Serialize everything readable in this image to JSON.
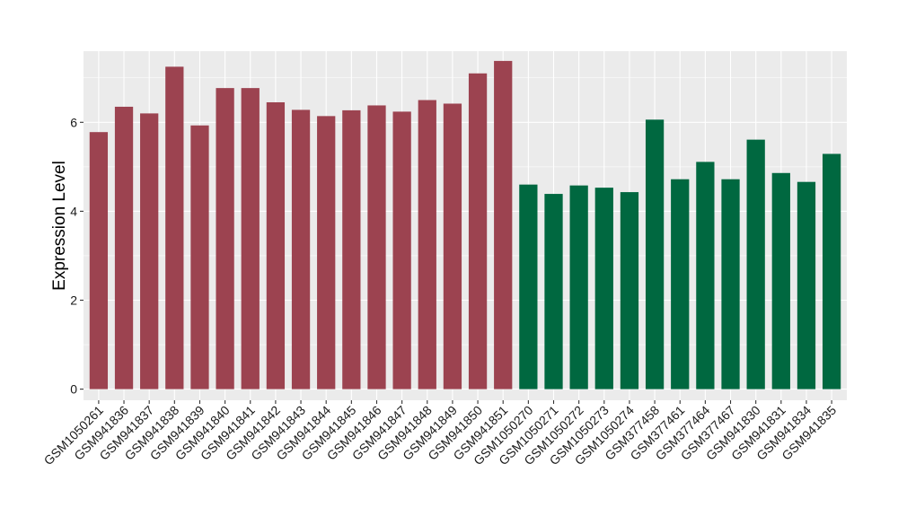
{
  "chart_data": {
    "type": "bar",
    "title": "",
    "xlabel": "",
    "ylabel": "Expression Level",
    "ylim": [
      -0.25,
      7.6
    ],
    "yticks": [
      0,
      2,
      4,
      6
    ],
    "grid": true,
    "legend": "none",
    "colors": {
      "group_a": "#9C4350",
      "group_b": "#006840",
      "panel": "#EBEBEB",
      "grid": "#FFFFFF"
    },
    "categories": [
      "GSM1050261",
      "GSM941836",
      "GSM941837",
      "GSM941838",
      "GSM941839",
      "GSM941840",
      "GSM941841",
      "GSM941842",
      "GSM941843",
      "GSM941844",
      "GSM941845",
      "GSM941846",
      "GSM941847",
      "GSM941848",
      "GSM941849",
      "GSM941850",
      "GSM941851",
      "GSM1050270",
      "GSM1050271",
      "GSM1050272",
      "GSM1050273",
      "GSM1050274",
      "GSM377458",
      "GSM377461",
      "GSM377464",
      "GSM377467",
      "GSM941830",
      "GSM941831",
      "GSM941834",
      "GSM941835"
    ],
    "values": [
      5.78,
      6.35,
      6.2,
      7.25,
      5.93,
      6.77,
      6.77,
      6.45,
      6.28,
      6.14,
      6.27,
      6.38,
      6.24,
      6.5,
      6.42,
      7.1,
      7.38,
      4.6,
      4.39,
      4.58,
      4.53,
      4.43,
      6.06,
      4.72,
      5.11,
      4.72,
      5.61,
      4.86,
      4.66,
      5.29
    ],
    "groups": [
      "a",
      "a",
      "a",
      "a",
      "a",
      "a",
      "a",
      "a",
      "a",
      "a",
      "a",
      "a",
      "a",
      "a",
      "a",
      "a",
      "a",
      "b",
      "b",
      "b",
      "b",
      "b",
      "b",
      "b",
      "b",
      "b",
      "b",
      "b",
      "b",
      "b"
    ]
  }
}
